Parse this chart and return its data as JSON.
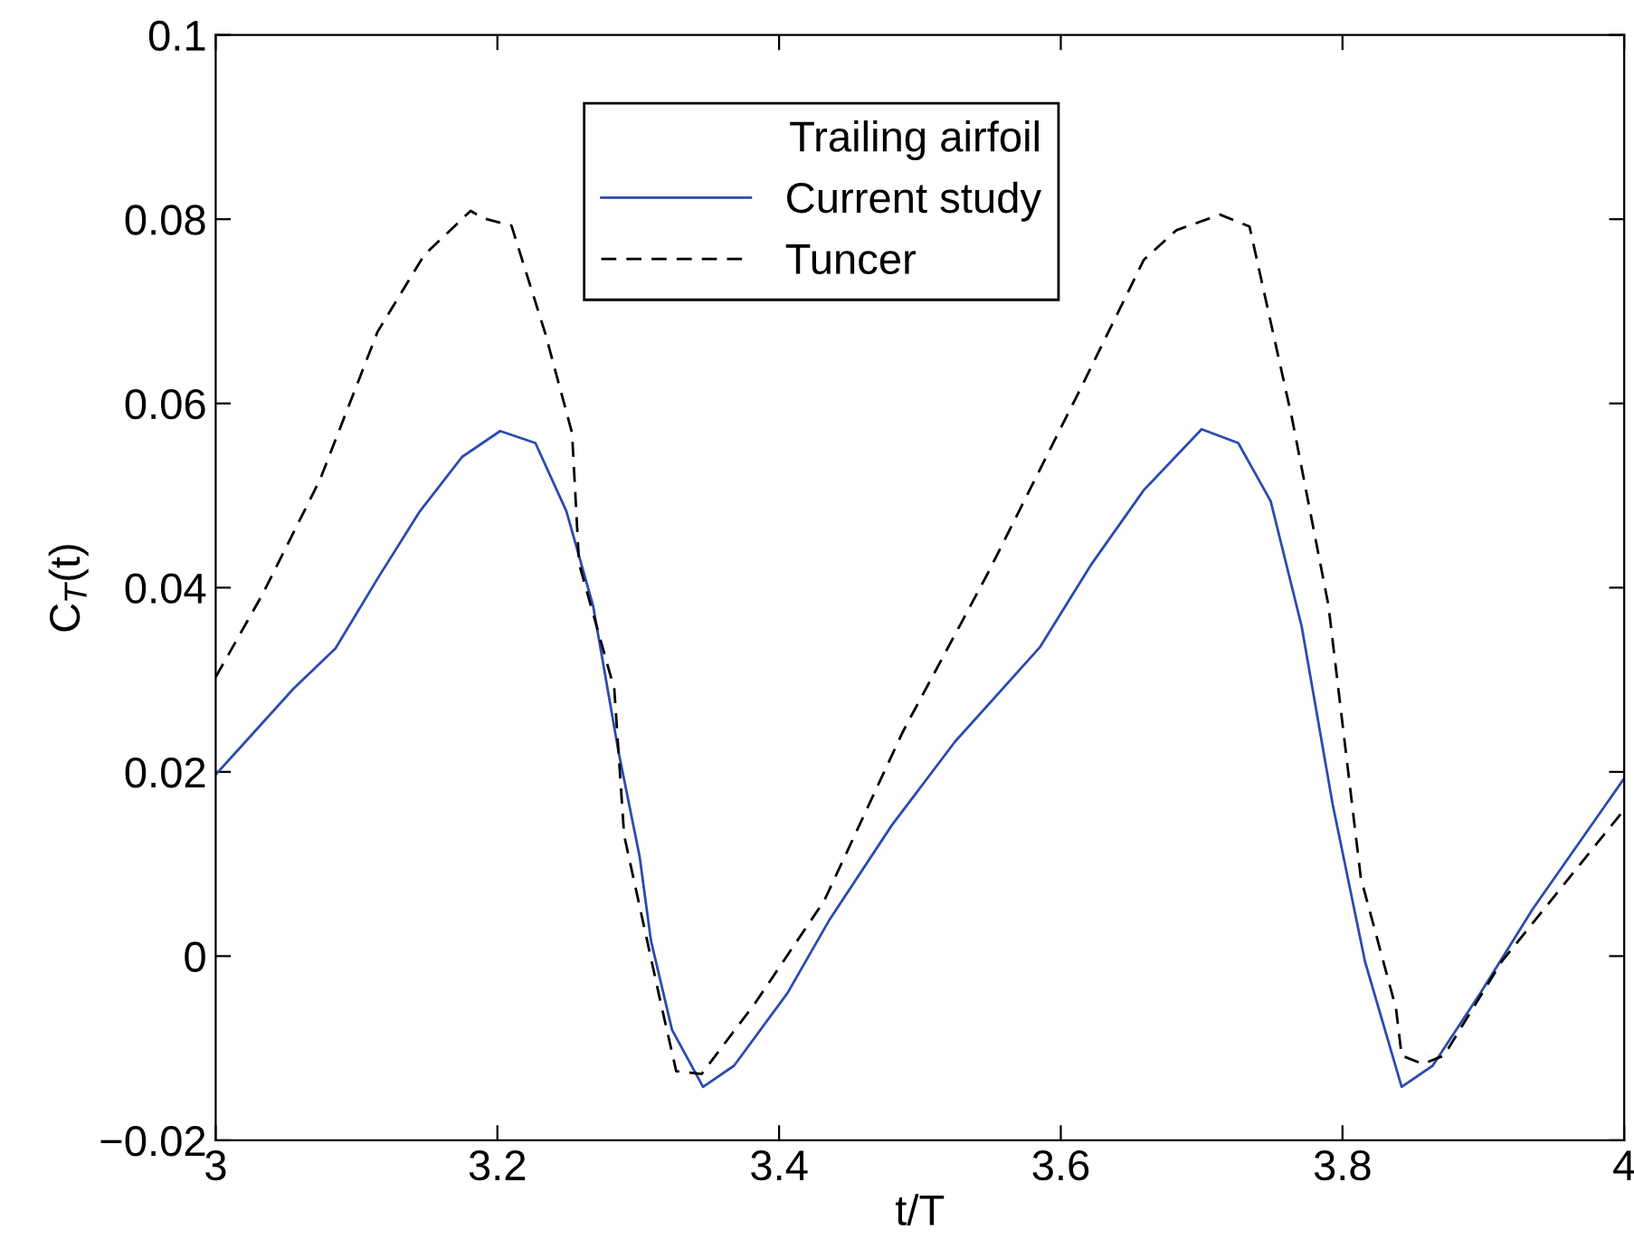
{
  "chart_data": {
    "type": "line",
    "xlabel": "t/T",
    "ylabel": "C$_{T}$(t)",
    "legend_title": "Trailing airfoil",
    "legend": "top",
    "grid": false,
    "xlim": [
      3,
      4
    ],
    "xticks": [
      3,
      3.2,
      3.4,
      3.6,
      3.8,
      4
    ],
    "ylim": [
      -0.02,
      0.1
    ],
    "yticks": [
      {
        "value": -0.02,
        "label": "−0.02"
      },
      0,
      0.02,
      0.04,
      0.06,
      0.08,
      0.1
    ],
    "series": [
      {
        "name": "Current study",
        "color": "#2a4bb0",
        "line_style": "solid",
        "x": [
          3,
          3.055,
          3.085,
          3.115,
          3.145,
          3.175,
          3.202,
          3.227,
          3.249,
          3.268,
          3.286,
          3.301,
          3.309,
          3.324,
          3.346,
          3.368,
          3.406,
          3.436,
          3.48,
          3.525,
          3.585,
          3.622,
          3.659,
          3.7,
          3.726,
          3.749,
          3.771,
          3.793,
          3.816,
          3.842,
          3.864,
          3.898,
          3.935,
          4
        ],
        "values": [
          0.0197,
          0.029,
          0.0334,
          0.041,
          0.0483,
          0.0542,
          0.057,
          0.0557,
          0.0483,
          0.038,
          0.0222,
          0.0108,
          0.0017,
          -0.008,
          -0.0142,
          -0.0119,
          -0.004,
          0.004,
          0.0142,
          0.0233,
          0.0335,
          0.0426,
          0.0506,
          0.0572,
          0.0557,
          0.0494,
          0.0358,
          0.0165,
          -0.0006,
          -0.0142,
          -0.0119,
          -0.004,
          0.0051,
          0.0193
        ]
      },
      {
        "name": "Tuncer",
        "color": "#000000",
        "line_style": "dashed",
        "x": [
          3,
          3.033,
          3.074,
          3.115,
          3.148,
          3.181,
          3.19,
          3.21,
          3.234,
          3.253,
          3.258,
          3.283,
          3.29,
          3.316,
          3.327,
          3.345,
          3.383,
          3.432,
          3.488,
          3.548,
          3.615,
          3.659,
          3.682,
          3.713,
          3.734,
          3.764,
          3.79,
          3.813,
          3.838,
          3.842,
          3.857,
          3.872,
          3.913,
          4
        ],
        "values": [
          0.0303,
          0.0392,
          0.0517,
          0.0678,
          0.0761,
          0.0809,
          0.0801,
          0.0793,
          0.0676,
          0.0568,
          0.0426,
          0.029,
          0.0131,
          -0.0051,
          -0.0125,
          -0.0128,
          -0.0051,
          0.006,
          0.0244,
          0.0415,
          0.0619,
          0.0756,
          0.0788,
          0.0805,
          0.0792,
          0.0585,
          0.0381,
          0.0085,
          -0.0057,
          -0.0108,
          -0.0117,
          -0.0108,
          -0.0006,
          0.0159
        ]
      }
    ]
  }
}
